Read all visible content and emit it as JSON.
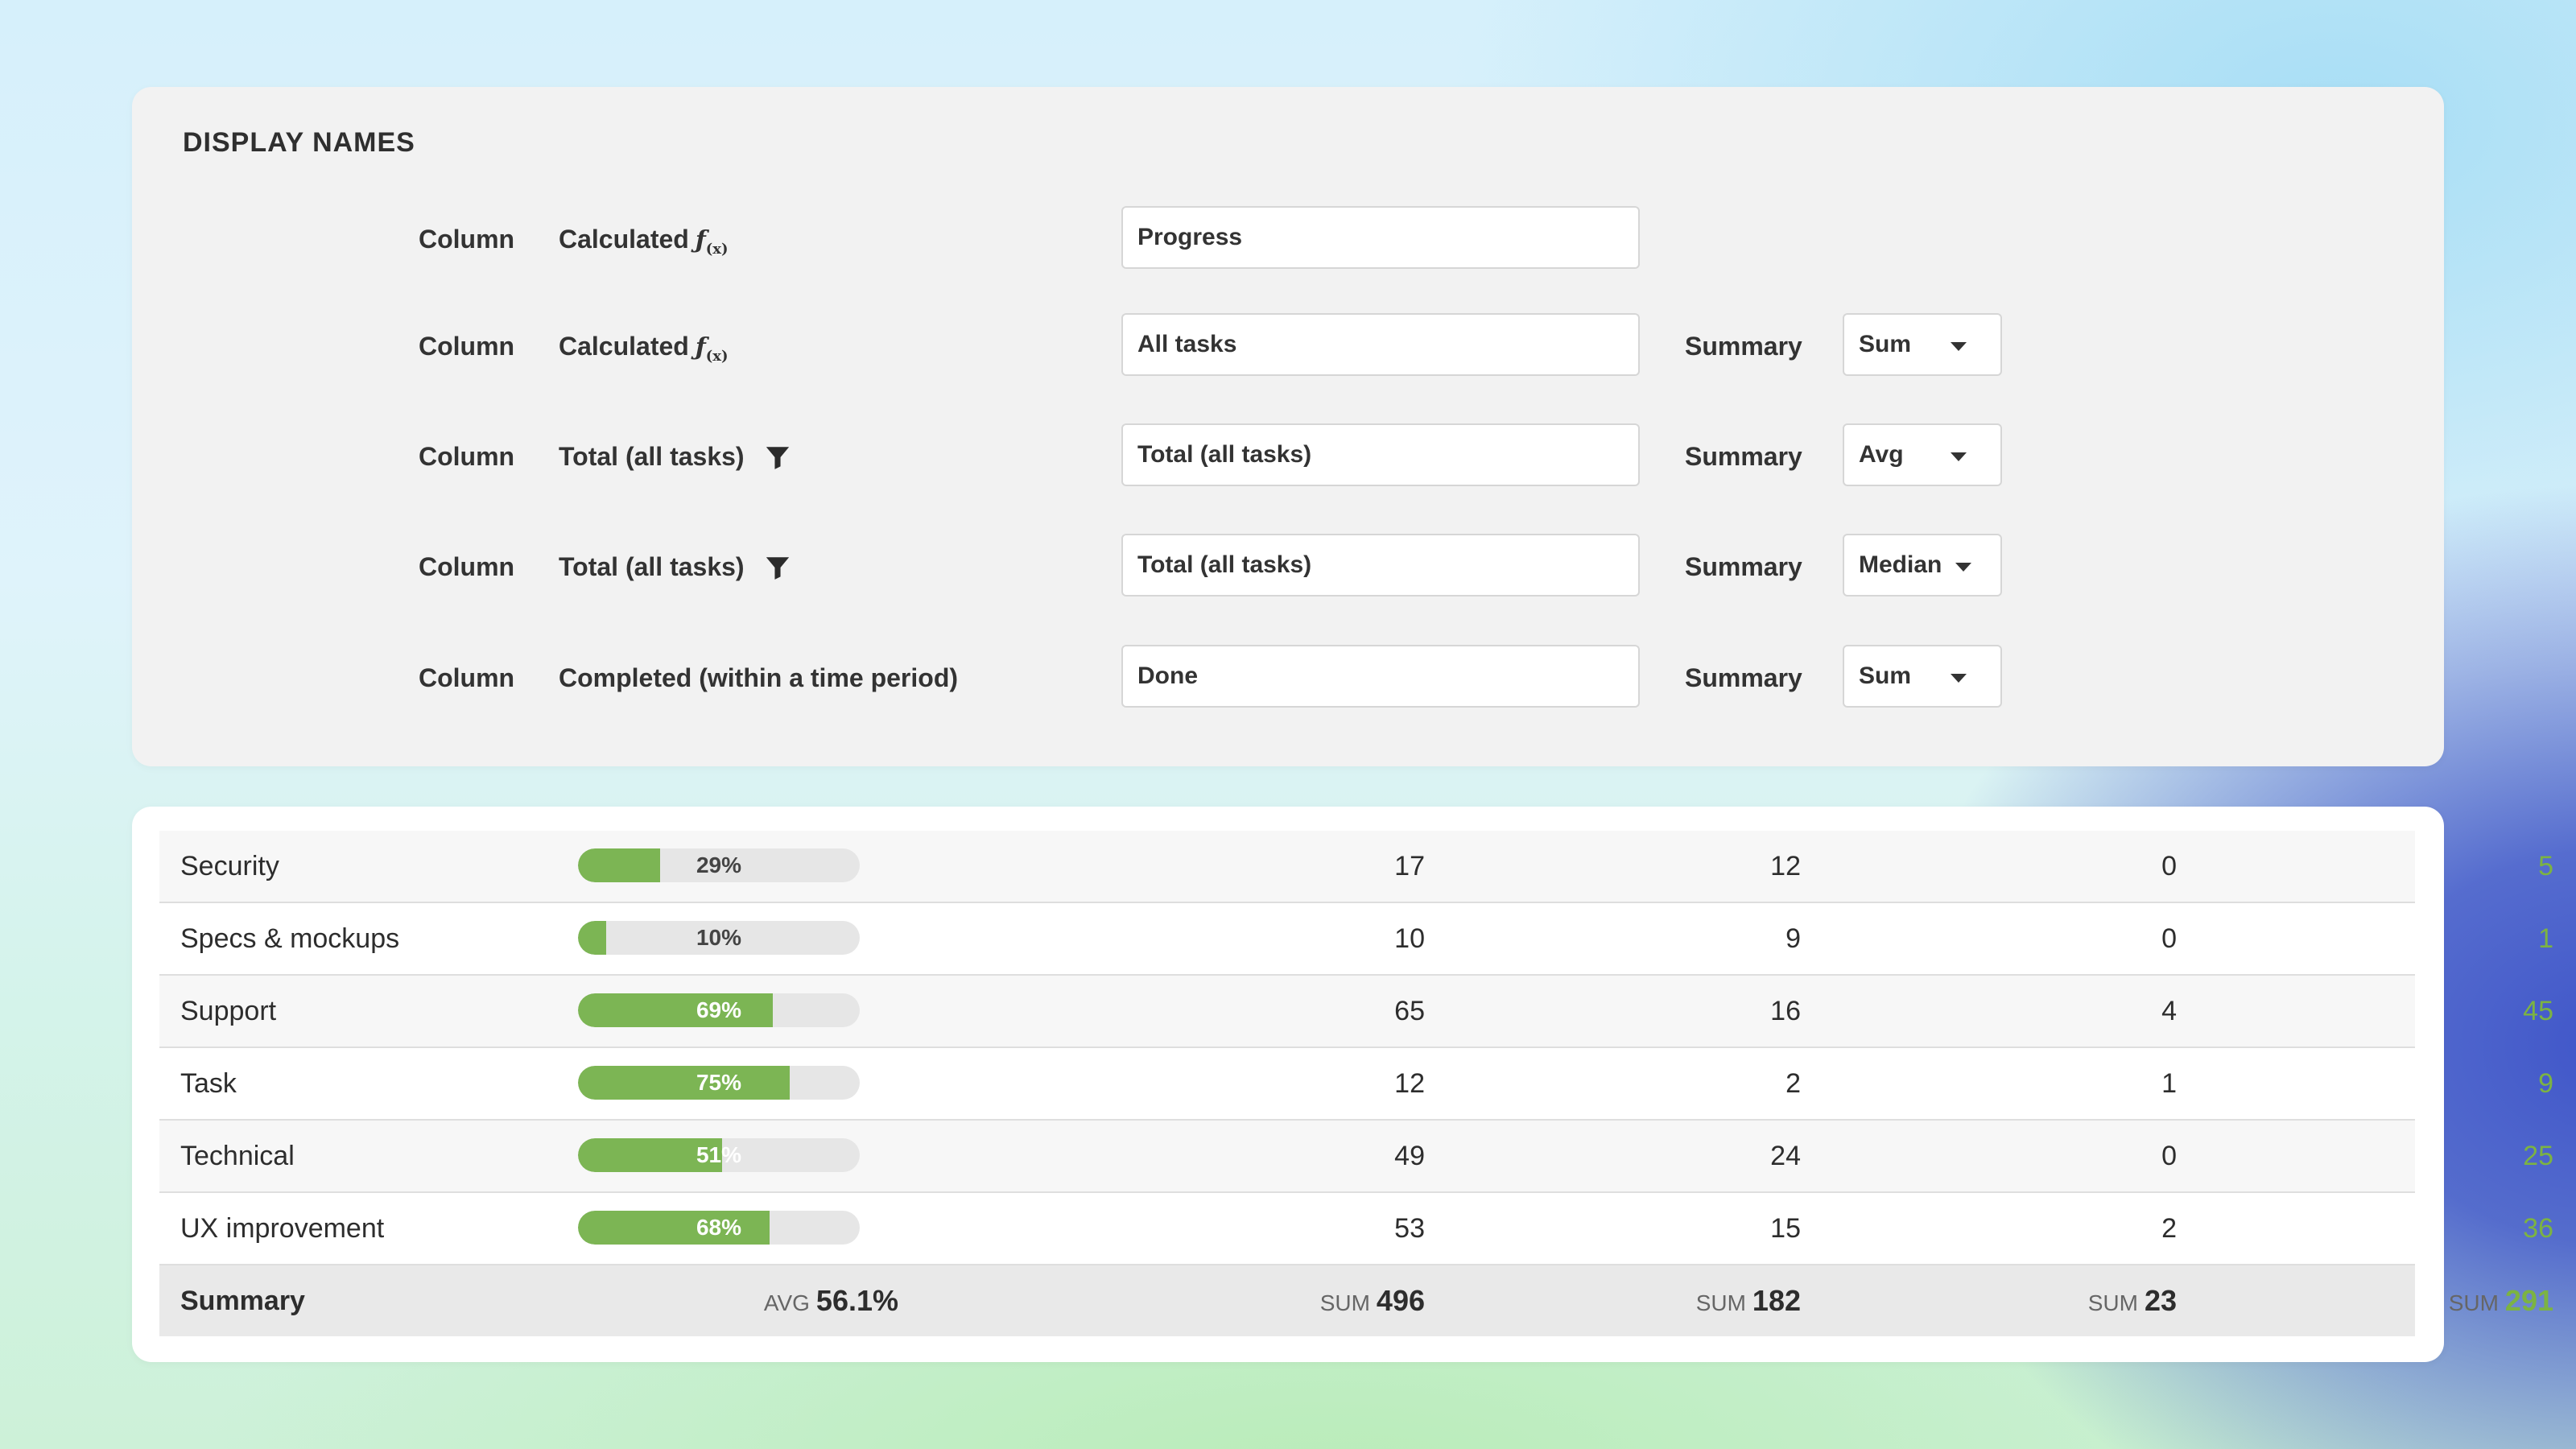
{
  "display_names": {
    "title": "DISPLAY NAMES",
    "rows": [
      {
        "column_label": "Column",
        "source": "Calculated",
        "source_icon": "fx-icon",
        "display_name": "Progress",
        "summary_label": "",
        "summary": ""
      },
      {
        "column_label": "Column",
        "source": "Calculated",
        "source_icon": "fx-icon",
        "display_name": "All tasks",
        "summary_label": "Summary",
        "summary": "Sum"
      },
      {
        "column_label": "Column",
        "source": "Total (all tasks)",
        "source_icon": "filter-icon",
        "display_name": "Total (all tasks)",
        "summary_label": "Summary",
        "summary": "Avg"
      },
      {
        "column_label": "Column",
        "source": "Total (all tasks)",
        "source_icon": "filter-icon",
        "display_name": "Total (all tasks)",
        "summary_label": "Summary",
        "summary": "Median"
      },
      {
        "column_label": "Column",
        "source": "Completed (within a time period)",
        "source_icon": "",
        "display_name": "Done",
        "summary_label": "Summary",
        "summary": "Sum"
      }
    ]
  },
  "fx_glyph": "ƒ",
  "fx_sub": "(x)",
  "table": {
    "rows": [
      {
        "name": "Security",
        "progress": 0.29,
        "progress_label": "29%",
        "c1": "17",
        "c2": "12",
        "c3": "0",
        "c4": "5"
      },
      {
        "name": "Specs & mockups",
        "progress": 0.1,
        "progress_label": "10%",
        "c1": "10",
        "c2": "9",
        "c3": "0",
        "c4": "1"
      },
      {
        "name": "Support",
        "progress": 0.69,
        "progress_label": "69%",
        "c1": "65",
        "c2": "16",
        "c3": "4",
        "c4": "45"
      },
      {
        "name": "Task",
        "progress": 0.75,
        "progress_label": "75%",
        "c1": "12",
        "c2": "2",
        "c3": "1",
        "c4": "9"
      },
      {
        "name": "Technical",
        "progress": 0.51,
        "progress_label": "51%",
        "c1": "49",
        "c2": "24",
        "c3": "0",
        "c4": "25"
      },
      {
        "name": "UX improvement",
        "progress": 0.68,
        "progress_label": "68%",
        "c1": "53",
        "c2": "15",
        "c3": "2",
        "c4": "36"
      }
    ],
    "summary": {
      "label": "Summary",
      "progress": {
        "key": "AVG",
        "value": "56.1%"
      },
      "c1": {
        "key": "SUM",
        "value": "496"
      },
      "c2": {
        "key": "SUM",
        "value": "182"
      },
      "c3": {
        "key": "SUM",
        "value": "23"
      },
      "c4": {
        "key": "SUM",
        "value": "291"
      }
    }
  },
  "colors": {
    "progress_fill": "#7cb554",
    "done_text": "#7cb342",
    "track": "#e6e6e6"
  }
}
